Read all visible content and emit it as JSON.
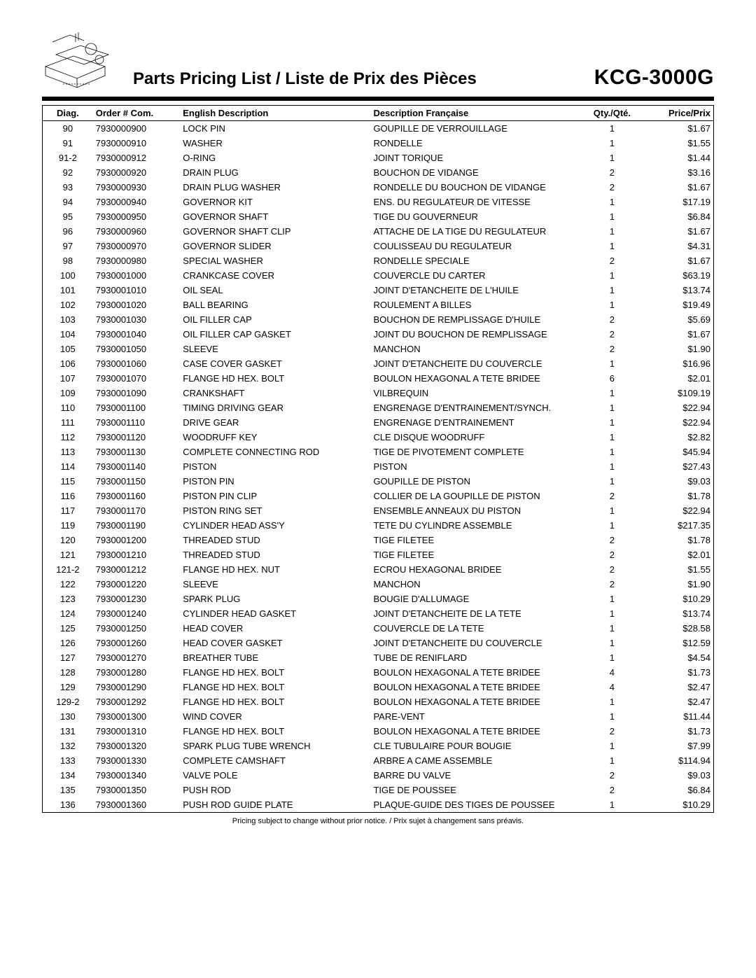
{
  "header": {
    "page_title": "Parts Pricing List / Liste de Prix des Pièces",
    "model": "KCG-3000G"
  },
  "table": {
    "columns": {
      "diag": "Diag.",
      "order": "Order # Com.",
      "en": "English Description",
      "fr": "Description Française",
      "qty": "Qty./Qté.",
      "price": "Price/Prix"
    },
    "rows": [
      {
        "diag": "90",
        "order": "7930000900",
        "en": "LOCK PIN",
        "fr": "GOUPILLE DE VERROUILLAGE",
        "qty": "1",
        "price": "$1.67"
      },
      {
        "diag": "91",
        "order": "7930000910",
        "en": "WASHER",
        "fr": "RONDELLE",
        "qty": "1",
        "price": "$1.55"
      },
      {
        "diag": "91-2",
        "order": "7930000912",
        "en": "O-RING",
        "fr": "JOINT TORIQUE",
        "qty": "1",
        "price": "$1.44"
      },
      {
        "diag": "92",
        "order": "7930000920",
        "en": "DRAIN PLUG",
        "fr": "BOUCHON DE VIDANGE",
        "qty": "2",
        "price": "$3.16"
      },
      {
        "diag": "93",
        "order": "7930000930",
        "en": "DRAIN PLUG WASHER",
        "fr": "RONDELLE DU BOUCHON DE VIDANGE",
        "qty": "2",
        "price": "$1.67"
      },
      {
        "diag": "94",
        "order": "7930000940",
        "en": "GOVERNOR KIT",
        "fr": "ENS. DU REGULATEUR DE VITESSE",
        "qty": "1",
        "price": "$17.19"
      },
      {
        "diag": "95",
        "order": "7930000950",
        "en": "GOVERNOR SHAFT",
        "fr": "TIGE DU GOUVERNEUR",
        "qty": "1",
        "price": "$6.84"
      },
      {
        "diag": "96",
        "order": "7930000960",
        "en": "GOVERNOR SHAFT CLIP",
        "fr": "ATTACHE DE LA TIGE DU REGULATEUR",
        "qty": "1",
        "price": "$1.67"
      },
      {
        "diag": "97",
        "order": "7930000970",
        "en": "GOVERNOR SLIDER",
        "fr": "COULISSEAU DU REGULATEUR",
        "qty": "1",
        "price": "$4.31"
      },
      {
        "diag": "98",
        "order": "7930000980",
        "en": "SPECIAL WASHER",
        "fr": "RONDELLE SPECIALE",
        "qty": "2",
        "price": "$1.67"
      },
      {
        "diag": "100",
        "order": "7930001000",
        "en": "CRANKCASE COVER",
        "fr": "COUVERCLE DU CARTER",
        "qty": "1",
        "price": "$63.19"
      },
      {
        "diag": "101",
        "order": "7930001010",
        "en": "OIL SEAL",
        "fr": "JOINT D'ETANCHEITE DE L'HUILE",
        "qty": "1",
        "price": "$13.74"
      },
      {
        "diag": "102",
        "order": "7930001020",
        "en": "BALL BEARING",
        "fr": "ROULEMENT A BILLES",
        "qty": "1",
        "price": "$19.49"
      },
      {
        "diag": "103",
        "order": "7930001030",
        "en": "OIL FILLER CAP",
        "fr": "BOUCHON DE REMPLISSAGE D'HUILE",
        "qty": "2",
        "price": "$5.69"
      },
      {
        "diag": "104",
        "order": "7930001040",
        "en": "OIL FILLER CAP GASKET",
        "fr": "JOINT DU BOUCHON DE REMPLISSAGE",
        "qty": "2",
        "price": "$1.67"
      },
      {
        "diag": "105",
        "order": "7930001050",
        "en": "SLEEVE",
        "fr": "MANCHON",
        "qty": "2",
        "price": "$1.90"
      },
      {
        "diag": "106",
        "order": "7930001060",
        "en": "CASE COVER GASKET",
        "fr": "JOINT D'ETANCHEITE DU COUVERCLE",
        "qty": "1",
        "price": "$16.96"
      },
      {
        "diag": "107",
        "order": "7930001070",
        "en": "FLANGE HD HEX. BOLT",
        "fr": "BOULON HEXAGONAL A TETE BRIDEE",
        "qty": "6",
        "price": "$2.01"
      },
      {
        "diag": "109",
        "order": "7930001090",
        "en": "CRANKSHAFT",
        "fr": "VILBREQUIN",
        "qty": "1",
        "price": "$109.19"
      },
      {
        "diag": "110",
        "order": "7930001100",
        "en": "TIMING DRIVING GEAR",
        "fr": "ENGRENAGE D'ENTRAINEMENT/SYNCH.",
        "qty": "1",
        "price": "$22.94"
      },
      {
        "diag": "111",
        "order": "7930001110",
        "en": "DRIVE GEAR",
        "fr": "ENGRENAGE D'ENTRAINEMENT",
        "qty": "1",
        "price": "$22.94"
      },
      {
        "diag": "112",
        "order": "7930001120",
        "en": "WOODRUFF KEY",
        "fr": "CLE DISQUE WOODRUFF",
        "qty": "1",
        "price": "$2.82"
      },
      {
        "diag": "113",
        "order": "7930001130",
        "en": "COMPLETE CONNECTING ROD",
        "fr": "TIGE DE PIVOTEMENT COMPLETE",
        "qty": "1",
        "price": "$45.94"
      },
      {
        "diag": "114",
        "order": "7930001140",
        "en": "PISTON",
        "fr": "PISTON",
        "qty": "1",
        "price": "$27.43"
      },
      {
        "diag": "115",
        "order": "7930001150",
        "en": "PISTON PIN",
        "fr": "GOUPILLE DE PISTON",
        "qty": "1",
        "price": "$9.03"
      },
      {
        "diag": "116",
        "order": "7930001160",
        "en": "PISTON PIN CLIP",
        "fr": "COLLIER DE LA GOUPILLE DE PISTON",
        "qty": "2",
        "price": "$1.78"
      },
      {
        "diag": "117",
        "order": "7930001170",
        "en": "PISTON RING SET",
        "fr": "ENSEMBLE ANNEAUX DU PISTON",
        "qty": "1",
        "price": "$22.94"
      },
      {
        "diag": "119",
        "order": "7930001190",
        "en": "CYLINDER HEAD ASS'Y",
        "fr": "TETE DU CYLINDRE ASSEMBLE",
        "qty": "1",
        "price": "$217.35"
      },
      {
        "diag": "120",
        "order": "7930001200",
        "en": "THREADED STUD",
        "fr": "TIGE FILETEE",
        "qty": "2",
        "price": "$1.78"
      },
      {
        "diag": "121",
        "order": "7930001210",
        "en": "THREADED STUD",
        "fr": "TIGE FILETEE",
        "qty": "2",
        "price": "$2.01"
      },
      {
        "diag": "121-2",
        "order": "7930001212",
        "en": "FLANGE HD HEX. NUT",
        "fr": "ECROU HEXAGONAL BRIDEE",
        "qty": "2",
        "price": "$1.55"
      },
      {
        "diag": "122",
        "order": "7930001220",
        "en": "SLEEVE",
        "fr": "MANCHON",
        "qty": "2",
        "price": "$1.90"
      },
      {
        "diag": "123",
        "order": "7930001230",
        "en": "SPARK PLUG",
        "fr": "BOUGIE D'ALLUMAGE",
        "qty": "1",
        "price": "$10.29"
      },
      {
        "diag": "124",
        "order": "7930001240",
        "en": "CYLINDER HEAD GASKET",
        "fr": "JOINT D'ETANCHEITE DE LA TETE",
        "qty": "1",
        "price": "$13.74"
      },
      {
        "diag": "125",
        "order": "7930001250",
        "en": "HEAD COVER",
        "fr": "COUVERCLE DE LA TETE",
        "qty": "1",
        "price": "$28.58"
      },
      {
        "diag": "126",
        "order": "7930001260",
        "en": "HEAD COVER GASKET",
        "fr": "JOINT D'ETANCHEITE DU COUVERCLE",
        "qty": "1",
        "price": "$12.59"
      },
      {
        "diag": "127",
        "order": "7930001270",
        "en": "BREATHER TUBE",
        "fr": "TUBE DE RENIFLARD",
        "qty": "1",
        "price": "$4.54"
      },
      {
        "diag": "128",
        "order": "7930001280",
        "en": "FLANGE HD HEX. BOLT",
        "fr": "BOULON HEXAGONAL A TETE BRIDEE",
        "qty": "4",
        "price": "$1.73"
      },
      {
        "diag": "129",
        "order": "7930001290",
        "en": "FLANGE HD HEX. BOLT",
        "fr": "BOULON HEXAGONAL A TETE BRIDEE",
        "qty": "4",
        "price": "$2.47"
      },
      {
        "diag": "129-2",
        "order": "7930001292",
        "en": "FLANGE HD HEX. BOLT",
        "fr": "BOULON HEXAGONAL A TETE BRIDEE",
        "qty": "1",
        "price": "$2.47"
      },
      {
        "diag": "130",
        "order": "7930001300",
        "en": "WIND COVER",
        "fr": "PARE-VENT",
        "qty": "1",
        "price": "$11.44"
      },
      {
        "diag": "131",
        "order": "7930001310",
        "en": "FLANGE HD HEX. BOLT",
        "fr": "BOULON HEXAGONAL A TETE BRIDEE",
        "qty": "2",
        "price": "$1.73"
      },
      {
        "diag": "132",
        "order": "7930001320",
        "en": "SPARK PLUG TUBE WRENCH",
        "fr": "CLE TUBULAIRE POUR BOUGIE",
        "qty": "1",
        "price": "$7.99"
      },
      {
        "diag": "133",
        "order": "7930001330",
        "en": "COMPLETE CAMSHAFT",
        "fr": "ARBRE A CAME ASSEMBLE",
        "qty": "1",
        "price": "$114.94"
      },
      {
        "diag": "134",
        "order": "7930001340",
        "en": "VALVE POLE",
        "fr": "BARRE DU VALVE",
        "qty": "2",
        "price": "$9.03"
      },
      {
        "diag": "135",
        "order": "7930001350",
        "en": "PUSH ROD",
        "fr": "TIGE DE POUSSEE",
        "qty": "2",
        "price": "$6.84"
      },
      {
        "diag": "136",
        "order": "7930001360",
        "en": "PUSH ROD GUIDE PLATE",
        "fr": "PLAQUE-GUIDE DES TIGES DE POUSSEE",
        "qty": "1",
        "price": "$10.29"
      }
    ]
  },
  "footer_note": "Pricing subject to change without prior notice. / Prix sujet à changement sans préavis."
}
